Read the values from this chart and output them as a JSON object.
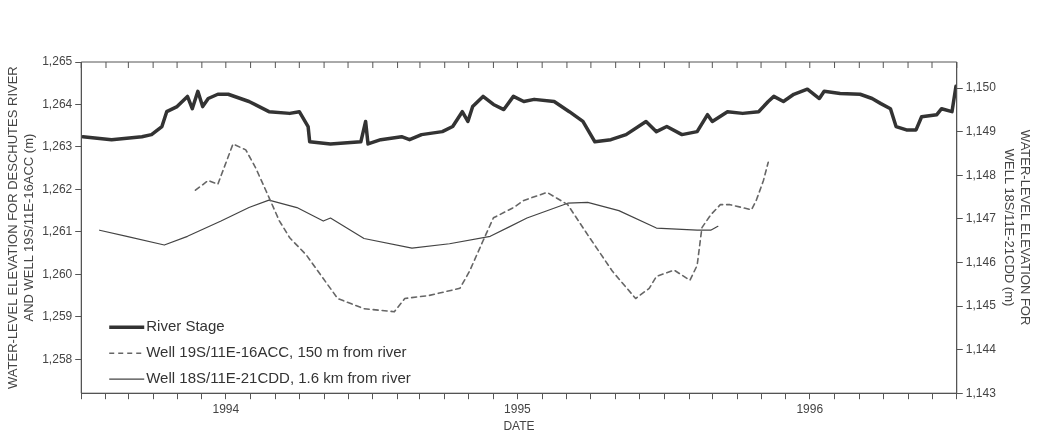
{
  "chart_data": {
    "type": "line",
    "xlabel": "DATE",
    "ylabel": "WATER-LEVEL ELEVATION FOR DESCHUTES RIVER\nAND WELL 19S/11E-16ACC (m)",
    "y2label": "WATER-LEVEL ELEVATION FOR\nWELL 18S/11E-21CDD (m)",
    "xlim": [
      "1994-01-01",
      "1997-01-01"
    ],
    "xticks": [
      {
        "value": "1994-01-01",
        "label": null
      },
      {
        "value": "1994-02-01",
        "label": null
      },
      {
        "value": "1994-03-01",
        "label": null
      },
      {
        "value": "1994-04-01",
        "label": null
      },
      {
        "value": "1994-05-01",
        "label": null
      },
      {
        "value": "1994-06-01",
        "label": null
      },
      {
        "value": "1994-07-01",
        "label": "1994"
      },
      {
        "value": "1994-08-01",
        "label": null
      },
      {
        "value": "1994-09-01",
        "label": null
      },
      {
        "value": "1994-10-01",
        "label": null
      },
      {
        "value": "1994-11-01",
        "label": null
      },
      {
        "value": "1994-12-01",
        "label": null
      },
      {
        "value": "1995-01-01",
        "label": null
      },
      {
        "value": "1995-02-01",
        "label": null
      },
      {
        "value": "1995-03-01",
        "label": null
      },
      {
        "value": "1995-04-01",
        "label": null
      },
      {
        "value": "1995-05-01",
        "label": null
      },
      {
        "value": "1995-06-01",
        "label": null
      },
      {
        "value": "1995-07-01",
        "label": "1995"
      },
      {
        "value": "1995-08-01",
        "label": null
      },
      {
        "value": "1995-09-01",
        "label": null
      },
      {
        "value": "1995-10-01",
        "label": null
      },
      {
        "value": "1995-11-01",
        "label": null
      },
      {
        "value": "1995-12-01",
        "label": null
      },
      {
        "value": "1996-01-01",
        "label": null
      },
      {
        "value": "1996-02-01",
        "label": null
      },
      {
        "value": "1996-03-01",
        "label": null
      },
      {
        "value": "1996-04-01",
        "label": null
      },
      {
        "value": "1996-05-01",
        "label": null
      },
      {
        "value": "1996-06-01",
        "label": null
      },
      {
        "value": "1996-07-01",
        "label": "1996"
      },
      {
        "value": "1996-08-01",
        "label": null
      },
      {
        "value": "1996-09-01",
        "label": null
      },
      {
        "value": "1996-10-01",
        "label": null
      },
      {
        "value": "1996-11-01",
        "label": null
      },
      {
        "value": "1996-12-01",
        "label": null
      },
      {
        "value": "1997-01-01",
        "label": null
      }
    ],
    "ylim": [
      1257.2,
      1265
    ],
    "yticks": [
      {
        "value": 1258,
        "label": "1,258"
      },
      {
        "value": 1259,
        "label": "1,259"
      },
      {
        "value": 1260,
        "label": "1,260"
      },
      {
        "value": 1261,
        "label": "1,261"
      },
      {
        "value": 1262,
        "label": "1,262"
      },
      {
        "value": 1263,
        "label": "1,263"
      },
      {
        "value": 1264,
        "label": "1,264"
      },
      {
        "value": 1265,
        "label": "1,265"
      }
    ],
    "y2lim": [
      1143,
      1150.6
    ],
    "y2ticks": [
      {
        "value": 1143,
        "label": "1,143"
      },
      {
        "value": 1144,
        "label": "1,144"
      },
      {
        "value": 1145,
        "label": "1,145"
      },
      {
        "value": 1146,
        "label": "1,146"
      },
      {
        "value": 1147,
        "label": "1,147"
      },
      {
        "value": 1148,
        "label": "1,148"
      },
      {
        "value": 1149,
        "label": "1,149"
      },
      {
        "value": 1150,
        "label": "1,150"
      }
    ],
    "grid": false,
    "legend": "bottom left",
    "marker": "none",
    "series": [
      {
        "name": "River Stage",
        "color": "#333333",
        "line_style": "solid",
        "x": [
          "1994-01-03",
          "1994-02-08",
          "1994-03-18",
          "1994-03-30",
          "1994-04-12",
          "1994-04-18",
          "1994-05-01",
          "1994-05-14",
          "1994-05-20",
          "1994-05-27",
          "1994-06-02",
          "1994-06-09",
          "1994-06-21",
          "1994-07-04",
          "1994-07-30",
          "1994-08-24",
          "1994-09-19",
          "1994-10-01",
          "1994-10-12",
          "1994-10-14",
          "1994-11-09",
          "1994-12-17",
          "1994-12-23",
          "1994-12-26",
          "1995-01-11",
          "1995-02-06",
          "1995-02-16",
          "1995-03-03",
          "1995-03-29",
          "1995-04-11",
          "1995-04-23",
          "1995-04-30",
          "1995-05-06",
          "1995-05-19",
          "1995-06-01",
          "1995-06-14",
          "1995-06-26",
          "1995-07-09",
          "1995-07-22",
          "1995-08-16",
          "1995-09-04",
          "1995-09-21",
          "1995-10-06",
          "1995-10-26",
          "1995-11-14",
          "1995-12-09",
          "1995-12-22",
          "1996-01-04",
          "1996-01-23",
          "1996-02-11",
          "1996-02-24",
          "1996-03-01",
          "1996-03-20",
          "1996-04-08",
          "1996-04-28",
          "1996-05-10",
          "1996-05-17",
          "1996-05-29",
          "1996-06-11",
          "1996-06-28",
          "1996-07-13",
          "1996-07-19",
          "1996-08-08",
          "1996-09-02",
          "1996-09-17",
          "1996-09-28",
          "1996-10-10",
          "1996-10-17",
          "1996-10-30",
          "1996-11-11",
          "1996-11-18",
          "1996-12-07",
          "1996-12-13",
          "1996-12-26",
          "1996-12-31"
        ],
        "values": [
          1263.24,
          1263.17,
          1263.24,
          1263.29,
          1263.48,
          1263.83,
          1263.95,
          1264.19,
          1263.9,
          1264.31,
          1263.95,
          1264.14,
          1264.24,
          1264.24,
          1264.07,
          1263.83,
          1263.79,
          1263.83,
          1263.48,
          1263.12,
          1263.07,
          1263.12,
          1263.6,
          1263.07,
          1263.17,
          1263.24,
          1263.17,
          1263.29,
          1263.36,
          1263.48,
          1263.83,
          1263.6,
          1263.95,
          1264.19,
          1264.0,
          1263.88,
          1264.19,
          1264.07,
          1264.12,
          1264.07,
          1263.83,
          1263.6,
          1263.12,
          1263.17,
          1263.29,
          1263.6,
          1263.36,
          1263.48,
          1263.29,
          1263.36,
          1263.76,
          1263.6,
          1263.83,
          1263.79,
          1263.83,
          1264.07,
          1264.19,
          1264.07,
          1264.24,
          1264.36,
          1264.14,
          1264.31,
          1264.26,
          1264.24,
          1264.14,
          1264.02,
          1263.9,
          1263.48,
          1263.4,
          1263.4,
          1263.71,
          1263.76,
          1263.9,
          1263.83,
          1264.43
        ]
      },
      {
        "name": "Well 19S/11E-16ACC, 150 m from river",
        "color": "#666666",
        "line_style": "dashed",
        "x": [
          "1994-05-24",
          "1994-06-09",
          "1994-06-21",
          "1994-07-10",
          "1994-07-26",
          "1994-08-07",
          "1994-08-20",
          "1994-09-06",
          "1994-09-19",
          "1994-10-10",
          "1994-10-31",
          "1994-11-18",
          "1994-12-21",
          "1995-01-28",
          "1995-02-10",
          "1995-03-12",
          "1995-04-20",
          "1995-05-02",
          "1995-05-19",
          "1995-06-01",
          "1995-06-26",
          "1995-07-09",
          "1995-08-07",
          "1995-09-02",
          "1995-09-27",
          "1995-10-28",
          "1995-11-26",
          "1995-12-13",
          "1995-12-22",
          "1996-01-13",
          "1996-02-02",
          "1996-02-11",
          "1996-02-17",
          "1996-02-28",
          "1996-03-11",
          "1996-03-23",
          "1996-04-19",
          "1996-04-25",
          "1996-05-04",
          "1996-05-10"
        ],
        "values": [
          1261.98,
          1262.21,
          1262.12,
          1263.07,
          1262.93,
          1262.52,
          1261.98,
          1261.26,
          1260.86,
          1260.45,
          1259.9,
          1259.43,
          1259.19,
          1259.12,
          1259.43,
          1259.5,
          1259.67,
          1260.07,
          1260.79,
          1261.33,
          1261.57,
          1261.74,
          1261.93,
          1261.64,
          1260.93,
          1260.07,
          1259.43,
          1259.67,
          1259.95,
          1260.1,
          1259.86,
          1260.21,
          1261.1,
          1261.4,
          1261.64,
          1261.64,
          1261.52,
          1261.74,
          1262.21,
          1262.64
        ]
      },
      {
        "name": "Well 18S/11E-21CDD, 1.6 km from river",
        "color": "#444444",
        "line_style": "solid",
        "axis": "y2",
        "x": [
          "1994-01-24",
          "1994-02-27",
          "1994-04-15",
          "1994-05-14",
          "1994-06-25",
          "1994-07-30",
          "1994-08-24",
          "1994-09-28",
          "1994-10-31",
          "1994-11-09",
          "1994-12-21",
          "1995-02-19",
          "1995-04-07",
          "1995-05-28",
          "1995-07-13",
          "1995-09-02",
          "1995-09-27",
          "1995-11-05",
          "1995-12-22",
          "1996-02-11",
          "1996-02-28",
          "1996-03-08"
        ],
        "values": [
          1146.74,
          1146.6,
          1146.4,
          1146.6,
          1146.95,
          1147.26,
          1147.43,
          1147.26,
          1146.95,
          1147.02,
          1146.55,
          1146.33,
          1146.43,
          1146.6,
          1147.02,
          1147.36,
          1147.38,
          1147.19,
          1146.79,
          1146.74,
          1146.74,
          1146.83
        ]
      }
    ]
  }
}
